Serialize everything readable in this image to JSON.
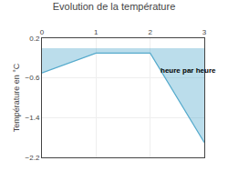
{
  "chart_data": {
    "type": "area",
    "title": "Evolution de la température",
    "ylabel": "Température en °C",
    "x": [
      0,
      1,
      2,
      3
    ],
    "values": [
      -0.5,
      -0.1,
      -0.1,
      -1.9
    ],
    "color": "#55aacc",
    "xlim": [
      0,
      3
    ],
    "xticks": [
      0,
      1,
      2,
      3
    ],
    "ylim": [
      -2.2,
      0.2
    ],
    "yticks": [
      0.2,
      -0.6,
      -1.4,
      -2.2
    ],
    "grid": true,
    "annotations": [
      {
        "text": "heure par heure",
        "x": 2.15,
        "y": -0.45
      }
    ]
  }
}
